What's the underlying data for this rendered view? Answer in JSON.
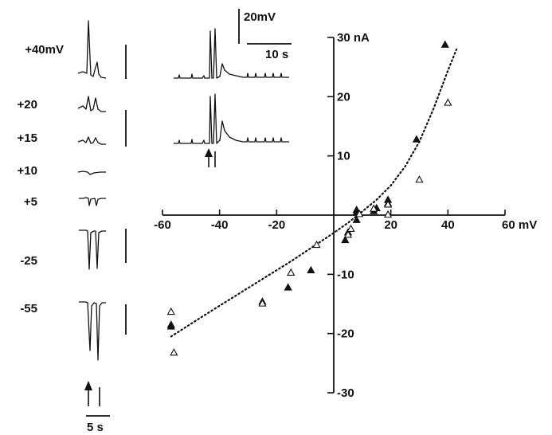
{
  "left_panel": {
    "voltage_labels": [
      "+40mV",
      "+20",
      "+15",
      "+10",
      "+5",
      "-25",
      "-55"
    ],
    "time_scale": "5 s"
  },
  "inset": {
    "voltage_scale": "20mV",
    "time_scale": "10 s"
  },
  "chart_data": {
    "type": "scatter",
    "x_unit": "mV",
    "y_unit": "nA",
    "xlim": [
      -60,
      60
    ],
    "ylim": [
      -30,
      30
    ],
    "x_ticks": [
      -60,
      -40,
      -20,
      20,
      40,
      60
    ],
    "x_tick_labels": [
      "-60",
      "-40",
      "-20",
      "20",
      "40",
      "60 mV"
    ],
    "y_ticks": [
      30,
      20,
      10,
      -10,
      -20,
      -30
    ],
    "y_tick_labels": [
      "30 nA",
      "20",
      "10",
      "-10",
      "-20",
      "-30"
    ],
    "grid": false,
    "series": [
      {
        "marker": "filled-triangle",
        "points": [
          [
            -57,
            -18.5
          ],
          [
            -57,
            -18.8
          ],
          [
            -25,
            -14.6
          ],
          [
            -16,
            -12.2
          ],
          [
            -8,
            -9.3
          ],
          [
            4,
            -4.2
          ],
          [
            5,
            -2.9
          ],
          [
            8,
            -0.8
          ],
          [
            8,
            0.5
          ],
          [
            8,
            0.9
          ],
          [
            14,
            0.7
          ],
          [
            15,
            1.2
          ],
          [
            19,
            2.0
          ],
          [
            19,
            2.6
          ],
          [
            29,
            12.8
          ],
          [
            39,
            28.8
          ]
        ]
      },
      {
        "marker": "open-triangle",
        "points": [
          [
            -57,
            -16.3
          ],
          [
            -56,
            -23.2
          ],
          [
            -25,
            -14.9
          ],
          [
            -15,
            -9.7
          ],
          [
            -6,
            -5.0
          ],
          [
            5,
            -3.3
          ],
          [
            6,
            -2.3
          ],
          [
            9,
            0.2
          ],
          [
            14,
            1.1
          ],
          [
            19,
            1.8
          ],
          [
            19,
            0.1
          ],
          [
            30,
            6.0
          ],
          [
            40,
            19.0
          ]
        ]
      }
    ],
    "fit_curve": {
      "style": "dotted",
      "points": [
        [
          -57,
          -20.5
        ],
        [
          -45,
          -16.8
        ],
        [
          -35,
          -13.8
        ],
        [
          -25,
          -10.8
        ],
        [
          -15,
          -7.8
        ],
        [
          -5,
          -4.6
        ],
        [
          0,
          -3.0
        ],
        [
          5,
          -1.3
        ],
        [
          10,
          0.6
        ],
        [
          15,
          2.6
        ],
        [
          20,
          5.0
        ],
        [
          25,
          8.2
        ],
        [
          30,
          12.4
        ],
        [
          35,
          18.0
        ],
        [
          40,
          24.4
        ],
        [
          43,
          28.0
        ]
      ]
    }
  }
}
